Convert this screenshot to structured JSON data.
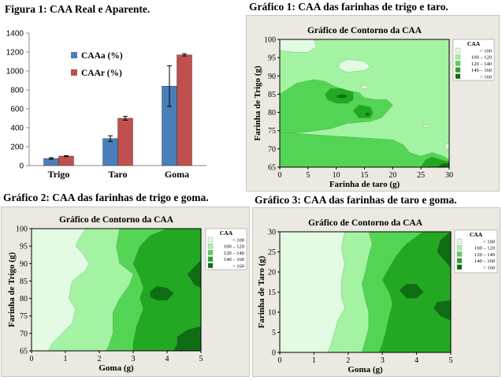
{
  "figure_caption": "Figura 1: CAA Real e Aparente.",
  "captions": {
    "g1": "Gráfico 1: CAA das farinhas de trigo e taro.",
    "g2": "Gráfico 2: CAA das farinhas de trigo e goma.",
    "g3": "Gráfico 3: CAA das farinhas de taro e goma."
  },
  "colors": {
    "caa_a": "#4a7ebb",
    "caa_r": "#c0504d",
    "level_1": "#e2fbe2",
    "level_2": "#a3f3a3",
    "level_3": "#54d454",
    "level_4": "#23a823",
    "level_5": "#0f6e14",
    "panel_bg": "#ece9e2"
  },
  "chart_data": [
    {
      "type": "bar",
      "id": "figura1",
      "categories": [
        "Trigo",
        "Taro",
        "Goma"
      ],
      "series": [
        {
          "name": "CAAa (%)",
          "values": [
            75,
            285,
            840
          ],
          "errors": [
            8,
            30,
            215
          ]
        },
        {
          "name": "CAAr (%)",
          "values": [
            100,
            500,
            1170
          ],
          "errors": [
            5,
            20,
            12
          ]
        }
      ],
      "ylim": [
        0,
        1400
      ],
      "yticks": [
        0,
        200,
        400,
        600,
        800,
        1000,
        1200,
        1400
      ],
      "legend_position": "top-center"
    },
    {
      "type": "contour",
      "id": "grafico1",
      "title": "Gráfico de Contorno da CAA",
      "xlabel": "Farinha de taro (g)",
      "ylabel": "Farinha de Trigo (g)",
      "xlim": [
        0,
        30
      ],
      "ylim": [
        65,
        100
      ],
      "xticks": [
        0,
        5,
        10,
        15,
        20,
        25,
        30
      ],
      "yticks": [
        65,
        70,
        75,
        80,
        85,
        90,
        95,
        100
      ],
      "legend": {
        "title": "CAA",
        "entries": [
          "< 100",
          "100 – 120",
          "120 – 140",
          "140 – 160",
          "> 160"
        ]
      }
    },
    {
      "type": "contour",
      "id": "grafico2",
      "title": "Gráfico de Contorno da CAA",
      "xlabel": "Goma (g)",
      "ylabel": "Farinha de Trigo (g)",
      "xlim": [
        0,
        5
      ],
      "ylim": [
        65,
        100
      ],
      "xticks": [
        0,
        1,
        2,
        3,
        4,
        5
      ],
      "yticks": [
        65,
        70,
        75,
        80,
        85,
        90,
        95,
        100
      ],
      "legend": {
        "title": "CAA",
        "entries": [
          "< 100",
          "100 – 120",
          "120 – 140",
          "140 – 160",
          "> 160"
        ]
      }
    },
    {
      "type": "contour",
      "id": "grafico3",
      "title": "Gráfico de Contorno da CAA",
      "xlabel": "Goma (g)",
      "ylabel": "Farinha de Taro (g)",
      "xlim": [
        0,
        5
      ],
      "ylim": [
        0,
        30
      ],
      "xticks": [
        0,
        1,
        2,
        3,
        4,
        5
      ],
      "yticks": [
        0,
        5,
        10,
        15,
        20,
        25,
        30
      ],
      "legend": {
        "title": "CAA",
        "entries": [
          "< 100",
          "100 – 120",
          "120 – 140",
          "140 – 160",
          "> 160"
        ]
      }
    }
  ]
}
